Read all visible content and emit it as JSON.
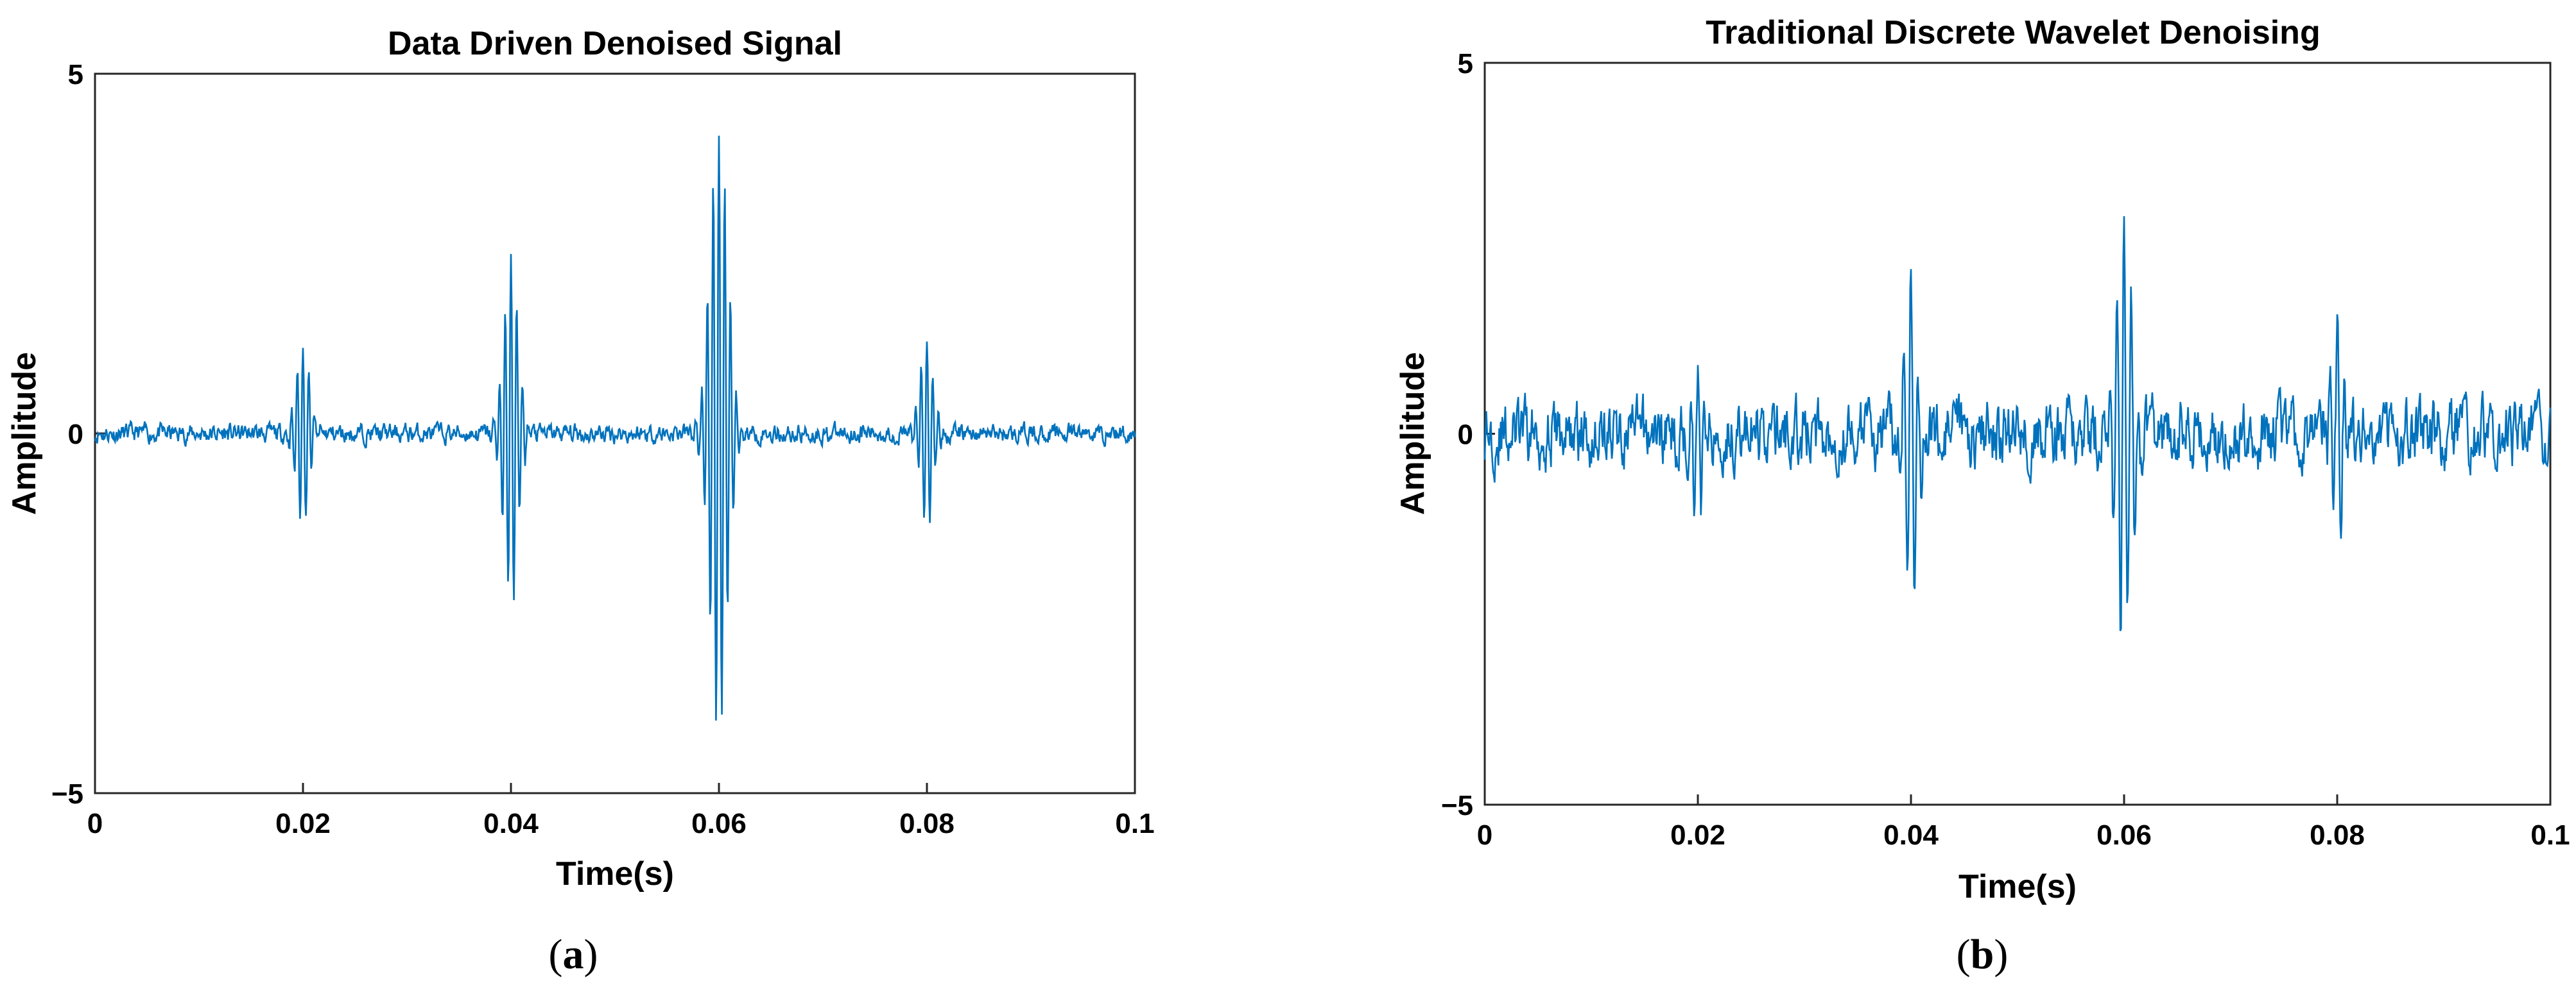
{
  "chart_data": [
    {
      "type": "line",
      "title": "Data Driven Denoised Signal",
      "xlabel": "Time(s)",
      "ylabel": "Amplitude",
      "caption": {
        "open": "(",
        "letter": "a",
        "close": ")"
      },
      "xlim": [
        0,
        0.1
      ],
      "ylim": [
        -5,
        5
      ],
      "xticks": [
        0,
        0.02,
        0.04,
        0.06,
        0.08,
        0.1
      ],
      "xtick_labels": [
        "0",
        "0.02",
        "0.04",
        "0.06",
        "0.08",
        "0.1"
      ],
      "yticks": [
        -5,
        0,
        5
      ],
      "ytick_labels": [
        "−5",
        "0",
        "5"
      ],
      "line_color": "#0072BD",
      "grid": false,
      "background_noise_amplitude": 0.15,
      "series": [
        {
          "bursts": [
            {
              "t": 0.02,
              "amp": 1.3,
              "freq": 1800,
              "width": 0.0009
            },
            {
              "t": 0.04,
              "amp": 2.4,
              "freq": 1800,
              "width": 0.001
            },
            {
              "t": 0.06,
              "amp": 4.2,
              "freq": 1800,
              "width": 0.0012
            },
            {
              "t": 0.08,
              "amp": 1.3,
              "freq": 1800,
              "width": 0.0009
            }
          ]
        }
      ]
    },
    {
      "type": "line",
      "title": "Traditional Discrete Wavelet Denoising",
      "xlabel": "Time(s)",
      "ylabel": "Amplitude",
      "caption": {
        "open": "(",
        "letter": "b",
        "close": ")"
      },
      "xlim": [
        0,
        0.1
      ],
      "ylim": [
        -5,
        5
      ],
      "xticks": [
        0,
        0.02,
        0.04,
        0.06,
        0.08,
        0.1
      ],
      "xtick_labels": [
        "0",
        "0.02",
        "0.04",
        "0.06",
        "0.08",
        "0.1"
      ],
      "yticks": [
        -5,
        0,
        5
      ],
      "ytick_labels": [
        "−5",
        "0",
        "5"
      ],
      "line_color": "#0072BD",
      "grid": false,
      "background_noise_amplitude": 0.5,
      "series": [
        {
          "bursts": [
            {
              "t": 0.02,
              "amp": 1.0,
              "freq": 1500,
              "width": 0.0008
            },
            {
              "t": 0.04,
              "amp": 2.1,
              "freq": 1500,
              "width": 0.0009
            },
            {
              "t": 0.06,
              "amp": 2.8,
              "freq": 1500,
              "width": 0.0011
            },
            {
              "t": 0.08,
              "amp": 1.2,
              "freq": 1500,
              "width": 0.0008
            }
          ]
        }
      ]
    }
  ]
}
